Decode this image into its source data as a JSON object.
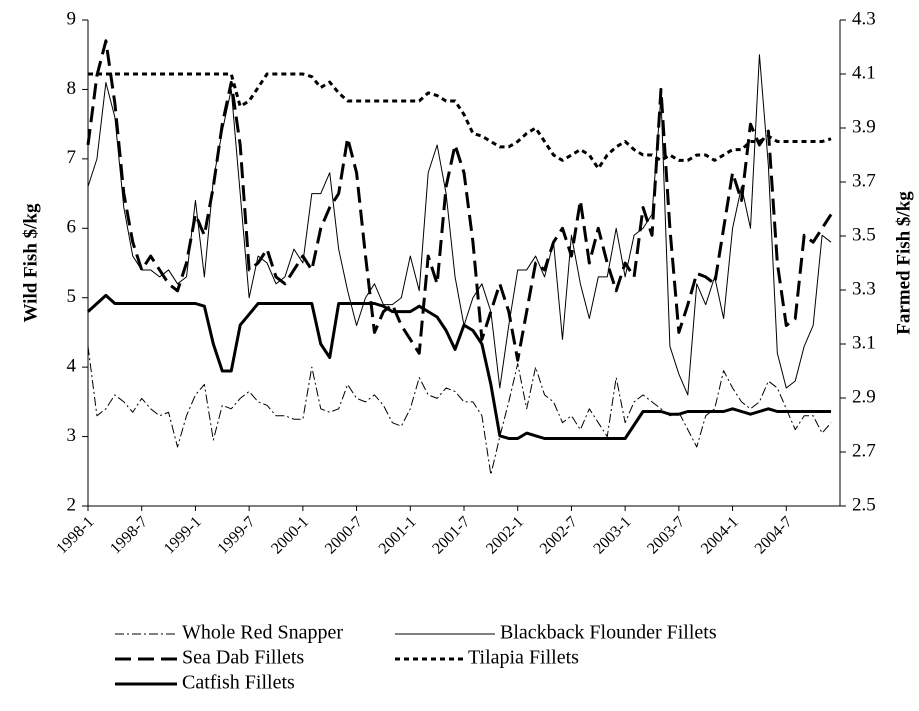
{
  "chart_data": {
    "type": "line",
    "y_label": "Wild Fish $/kg",
    "y2_label": "Farmed Fish $/kg",
    "categories": [
      "1998-1",
      null,
      null,
      null,
      null,
      null,
      "1998-7",
      null,
      null,
      null,
      null,
      null,
      "1999-1",
      null,
      null,
      null,
      null,
      null,
      "1999-7",
      null,
      null,
      null,
      null,
      null,
      "2000-1",
      null,
      null,
      null,
      null,
      null,
      "2000-7",
      null,
      null,
      null,
      null,
      null,
      "2001-1",
      null,
      null,
      null,
      null,
      null,
      "2001-7",
      null,
      null,
      null,
      null,
      null,
      "2002-1",
      null,
      null,
      null,
      null,
      null,
      "2002-7",
      null,
      null,
      null,
      null,
      null,
      "2003-1",
      null,
      null,
      null,
      null,
      null,
      "2003-7",
      null,
      null,
      null,
      null,
      null,
      "2004-1",
      null,
      null,
      null,
      null,
      null,
      "2004-7",
      null,
      null,
      null,
      null,
      null
    ],
    "ylim": [
      2,
      9
    ],
    "yticks": [
      2,
      3,
      4,
      5,
      6,
      7,
      8,
      9
    ],
    "y2lim": [
      2.5,
      4.3
    ],
    "y2ticks": [
      2.5,
      2.7,
      2.9,
      3.1,
      3.3,
      3.5,
      3.7,
      3.9,
      4.1,
      4.3
    ],
    "legend": "bottom",
    "series": [
      {
        "name": "Whole Red Snapper",
        "color": "#000000",
        "line_style": "dash-dot",
        "line_width": 1,
        "axis": "y",
        "values": [
          4.3,
          3.3,
          3.4,
          3.6,
          3.5,
          3.35,
          3.55,
          3.4,
          3.3,
          3.35,
          2.85,
          3.3,
          3.6,
          3.75,
          2.95,
          3.45,
          3.4,
          3.55,
          3.65,
          3.5,
          3.45,
          3.3,
          3.3,
          3.25,
          3.25,
          4.0,
          3.4,
          3.35,
          3.4,
          3.75,
          3.55,
          3.5,
          3.6,
          3.45,
          3.2,
          3.15,
          3.4,
          3.85,
          3.6,
          3.55,
          3.7,
          3.65,
          3.5,
          3.5,
          3.3,
          2.45,
          3.0,
          3.5,
          4.05,
          3.4,
          4.0,
          3.6,
          3.5,
          3.2,
          3.3,
          3.1,
          3.4,
          3.2,
          3.0,
          3.85,
          3.2,
          3.5,
          3.6,
          3.5,
          3.4,
          3.3,
          3.35,
          3.1,
          2.85,
          3.3,
          3.4,
          3.95,
          3.7,
          3.5,
          3.4,
          3.5,
          3.8,
          3.7,
          3.4,
          3.1,
          3.3,
          3.3,
          3.05,
          3.2
        ]
      },
      {
        "name": "Blackback Flounder Fillets",
        "color": "#000000",
        "line_style": "solid",
        "line_width": 1,
        "axis": "y",
        "values": [
          6.6,
          7.0,
          8.1,
          7.6,
          6.3,
          5.6,
          5.4,
          5.4,
          5.3,
          5.4,
          5.2,
          5.3,
          6.4,
          5.3,
          6.7,
          7.4,
          8.0,
          6.5,
          5.0,
          5.6,
          5.5,
          5.2,
          5.3,
          5.7,
          5.5,
          6.5,
          6.5,
          6.8,
          5.7,
          5.1,
          4.6,
          5.0,
          5.2,
          4.9,
          4.9,
          5.0,
          5.6,
          5.1,
          6.8,
          7.2,
          6.5,
          5.3,
          4.6,
          5.0,
          5.2,
          4.8,
          3.7,
          4.6,
          5.4,
          5.4,
          5.6,
          5.3,
          5.8,
          4.4,
          5.9,
          5.2,
          4.7,
          5.3,
          5.3,
          6.0,
          5.3,
          5.9,
          6.0,
          6.2,
          7.9,
          4.3,
          3.9,
          3.6,
          5.2,
          4.9,
          5.3,
          4.7,
          6.0,
          6.6,
          6.0,
          8.5,
          6.9,
          4.2,
          3.7,
          3.8,
          4.3,
          4.6,
          5.9,
          5.8
        ]
      },
      {
        "name": "Sea Dab Fillets",
        "color": "#000000",
        "line_style": "dashed",
        "line_width": 3,
        "axis": "y",
        "values": [
          7.2,
          8.2,
          8.7,
          7.8,
          6.5,
          5.8,
          5.4,
          5.6,
          5.4,
          5.2,
          5.1,
          5.5,
          6.2,
          5.9,
          6.6,
          7.5,
          8.1,
          7.2,
          5.4,
          5.5,
          5.7,
          5.3,
          5.2,
          5.4,
          5.6,
          5.4,
          6.0,
          6.3,
          6.5,
          7.3,
          6.8,
          5.6,
          4.5,
          4.8,
          4.9,
          4.6,
          4.4,
          4.2,
          5.6,
          5.2,
          6.6,
          7.2,
          6.8,
          5.8,
          4.4,
          4.8,
          5.2,
          4.8,
          4.1,
          4.8,
          5.5,
          5.4,
          5.8,
          6.0,
          5.6,
          6.4,
          5.5,
          6.0,
          5.5,
          5.1,
          5.5,
          5.3,
          6.3,
          5.9,
          8.0,
          6.0,
          4.5,
          4.9,
          5.35,
          5.3,
          5.2,
          6.0,
          6.8,
          6.4,
          7.5,
          7.2,
          7.4,
          5.5,
          4.6,
          4.7,
          5.9,
          5.8,
          6.0,
          6.2
        ]
      },
      {
        "name": "Tilapia Fillets",
        "color": "#000000",
        "line_style": "dotted",
        "line_width": 3,
        "axis": "y2",
        "values": [
          4.1,
          4.1,
          4.1,
          4.1,
          4.1,
          4.1,
          4.1,
          4.1,
          4.1,
          4.1,
          4.1,
          4.1,
          4.1,
          4.1,
          4.1,
          4.1,
          4.1,
          3.98,
          4.0,
          4.05,
          4.1,
          4.1,
          4.1,
          4.1,
          4.1,
          4.09,
          4.05,
          4.07,
          4.03,
          4.0,
          4.0,
          4.0,
          4.0,
          4.0,
          4.0,
          4.0,
          4.0,
          4.0,
          4.03,
          4.02,
          4.0,
          4.0,
          3.95,
          3.88,
          3.87,
          3.85,
          3.83,
          3.83,
          3.85,
          3.88,
          3.9,
          3.85,
          3.8,
          3.78,
          3.8,
          3.82,
          3.8,
          3.75,
          3.8,
          3.83,
          3.85,
          3.82,
          3.8,
          3.8,
          3.78,
          3.8,
          3.78,
          3.78,
          3.8,
          3.8,
          3.78,
          3.8,
          3.82,
          3.82,
          3.85,
          3.85,
          3.87,
          3.85,
          3.85,
          3.85,
          3.85,
          3.85,
          3.85,
          3.86
        ]
      },
      {
        "name": "Catfish Fillets",
        "color": "#000000",
        "line_style": "solid",
        "line_width": 3,
        "axis": "y2",
        "values": [
          3.22,
          3.25,
          3.28,
          3.25,
          3.25,
          3.25,
          3.25,
          3.25,
          3.25,
          3.25,
          3.25,
          3.25,
          3.25,
          3.24,
          3.1,
          3.0,
          3.0,
          3.17,
          3.21,
          3.25,
          3.25,
          3.25,
          3.25,
          3.25,
          3.25,
          3.25,
          3.1,
          3.05,
          3.25,
          3.25,
          3.25,
          3.25,
          3.25,
          3.24,
          3.22,
          3.22,
          3.22,
          3.24,
          3.22,
          3.2,
          3.15,
          3.08,
          3.17,
          3.15,
          3.1,
          2.95,
          2.76,
          2.75,
          2.75,
          2.77,
          2.76,
          2.75,
          2.75,
          2.75,
          2.75,
          2.75,
          2.75,
          2.75,
          2.75,
          2.75,
          2.75,
          2.8,
          2.85,
          2.85,
          2.85,
          2.84,
          2.84,
          2.85,
          2.85,
          2.85,
          2.85,
          2.85,
          2.86,
          2.85,
          2.84,
          2.85,
          2.86,
          2.85,
          2.85,
          2.85,
          2.85,
          2.85,
          2.85,
          2.85
        ]
      }
    ]
  }
}
